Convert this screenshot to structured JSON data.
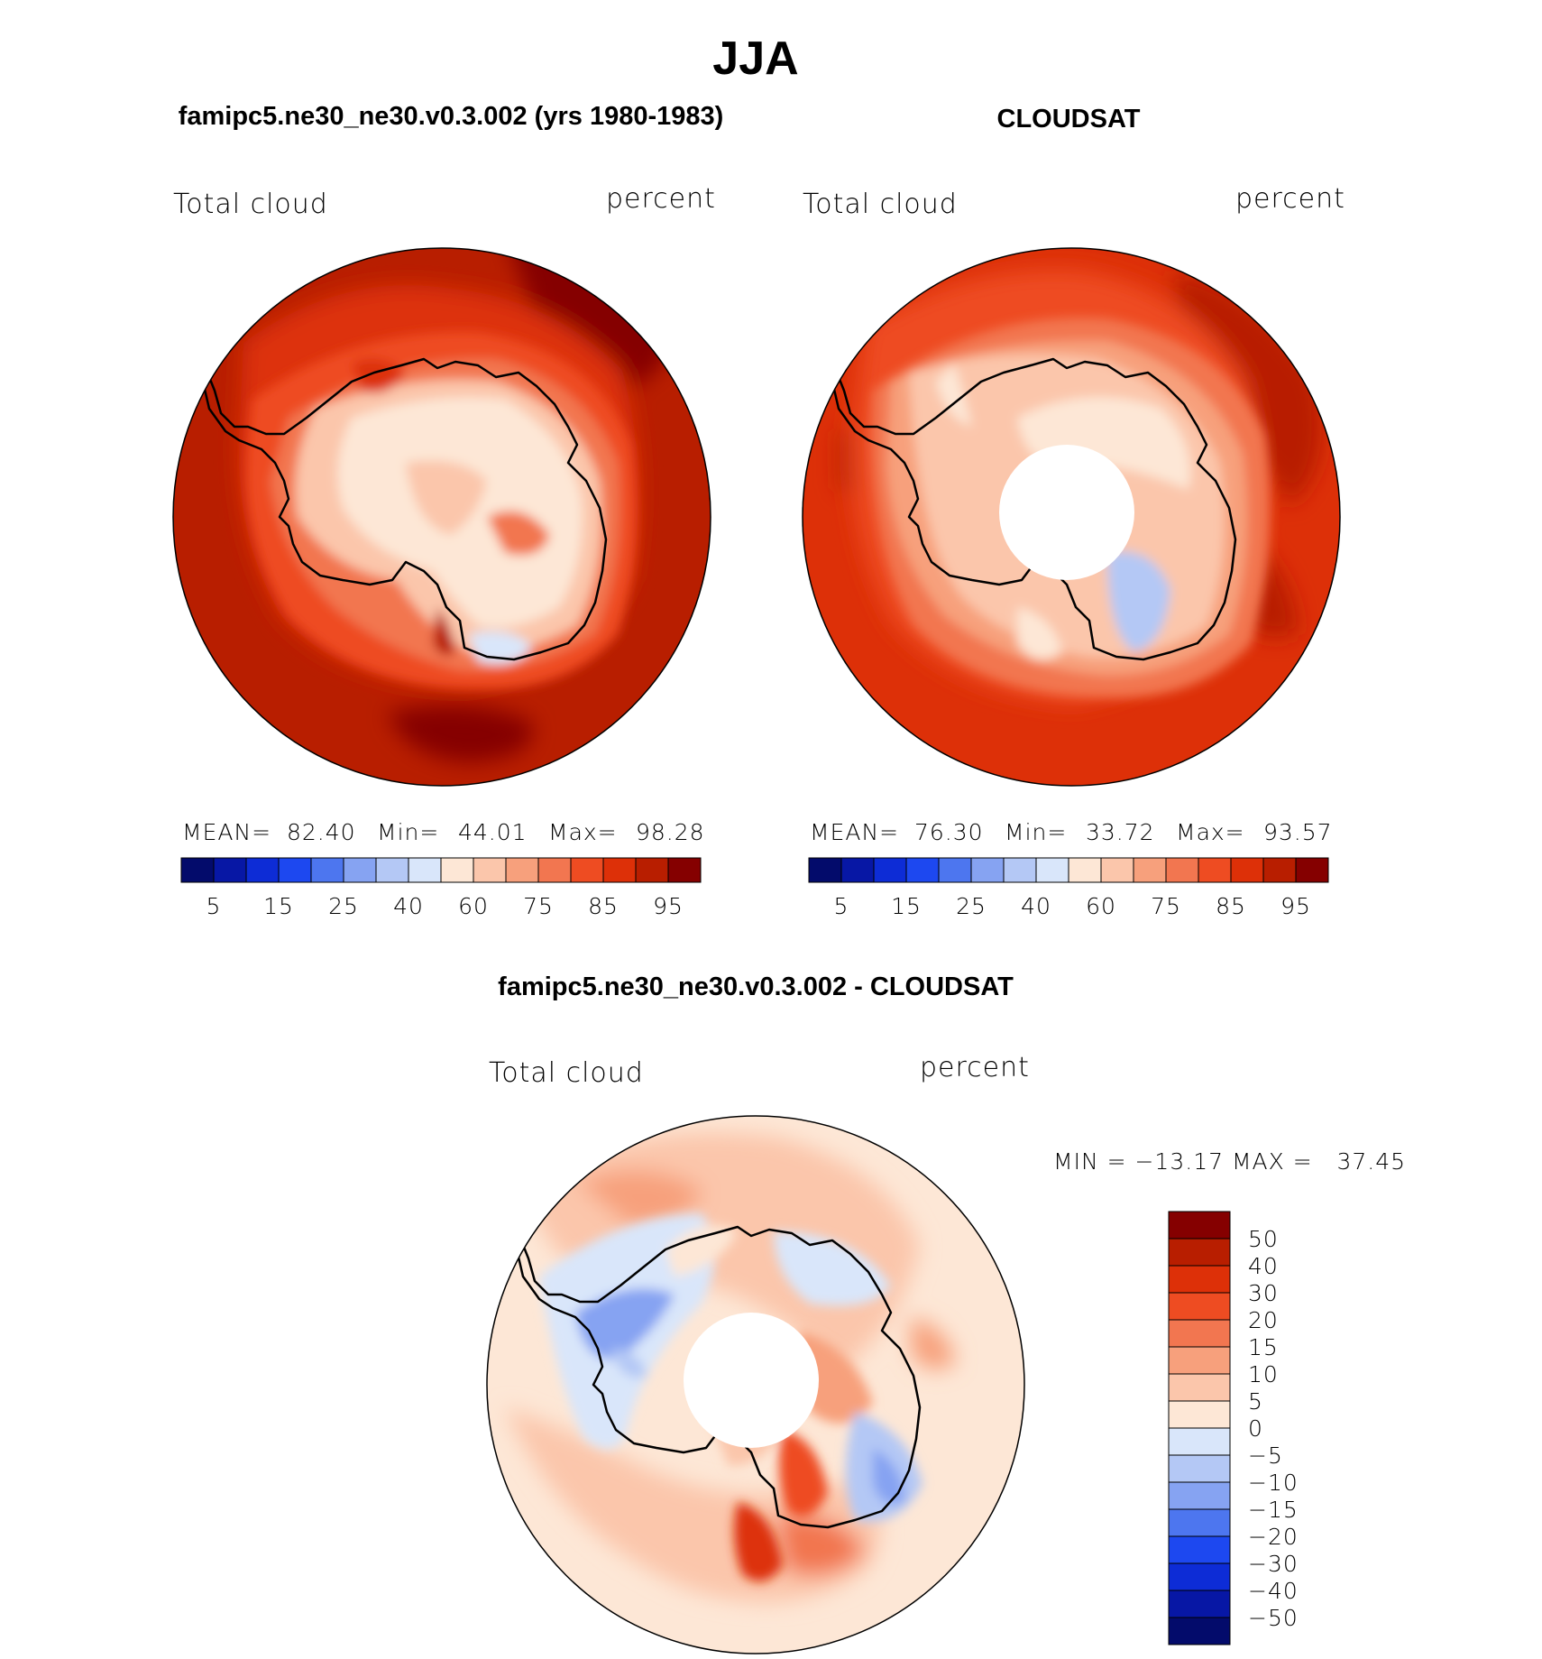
{
  "figure": {
    "season": "JJA",
    "model_title": "famipc5.ne30_ne30.v0.3.002 (yrs 1980-1983)",
    "obs_title": "CLOUDSAT",
    "diff_title": "famipc5.ne30_ne30.v0.3.002 - CLOUDSAT"
  },
  "chart_data": [
    {
      "type": "heatmap",
      "projection": "south-polar-stereographic",
      "panel": "model",
      "variable_label": "Total cloud",
      "units_label": "percent",
      "stats": {
        "mean_label": "MEAN=",
        "mean": "82.40",
        "min_label": "Min=",
        "min": "44.01",
        "max_label": "Max=",
        "max": "98.28"
      },
      "levels": [
        5,
        10,
        15,
        20,
        25,
        30,
        40,
        50,
        60,
        70,
        75,
        80,
        85,
        90,
        95
      ],
      "colors": [
        "#030b6b",
        "#0717a5",
        "#0d2cd6",
        "#1d48f0",
        "#4d76ef",
        "#86a3f2",
        "#b4c8f5",
        "#d9e6fa",
        "#fde7d6",
        "#fbc6ab",
        "#f7a07c",
        "#f27650",
        "#ee4c22",
        "#dd3008",
        "#b81e00",
        "#850000"
      ],
      "colorbar_tick_labels": [
        "5",
        "15",
        "25",
        "40",
        "60",
        "75",
        "85",
        "95"
      ],
      "description_regions": {
        "southern_ocean": "85-95",
        "antarctic_interior": "60-70",
        "coastal_ring": "75-85"
      }
    },
    {
      "type": "heatmap",
      "projection": "south-polar-stereographic",
      "panel": "observations",
      "variable_label": "Total cloud",
      "units_label": "percent",
      "stats": {
        "mean_label": "MEAN=",
        "mean": "76.30",
        "min_label": "Min=",
        "min": "33.72",
        "max_label": "Max=",
        "max": "93.57"
      },
      "levels": [
        5,
        10,
        15,
        20,
        25,
        30,
        40,
        50,
        60,
        70,
        75,
        80,
        85,
        90,
        95
      ],
      "colors": [
        "#030b6b",
        "#0717a5",
        "#0d2cd6",
        "#1d48f0",
        "#4d76ef",
        "#86a3f2",
        "#b4c8f5",
        "#d9e6fa",
        "#fde7d6",
        "#fbc6ab",
        "#f7a07c",
        "#f27650",
        "#ee4c22",
        "#dd3008",
        "#b81e00",
        "#850000"
      ],
      "colorbar_tick_labels": [
        "5",
        "15",
        "25",
        "40",
        "60",
        "75",
        "85",
        "95"
      ],
      "description_regions": {
        "southern_ocean": "80-90",
        "antarctic_interior": "60-75",
        "east_antarctic_plateau": "40-60",
        "pole_hole": "missing"
      }
    },
    {
      "type": "heatmap",
      "projection": "south-polar-stereographic",
      "panel": "difference",
      "variable_label": "Total cloud",
      "units_label": "percent",
      "stats": {
        "text": "MIN = −13.17 MAX =   37.45",
        "min": -13.17,
        "max": 37.45
      },
      "levels": [
        -50,
        -40,
        -30,
        -20,
        -15,
        -10,
        -5,
        0,
        5,
        10,
        15,
        20,
        30,
        40,
        50
      ],
      "colors": [
        "#030b6b",
        "#0717a5",
        "#0d2cd6",
        "#1d48f0",
        "#4d76ef",
        "#86a3f2",
        "#b4c8f5",
        "#d9e6fa",
        "#fde7d6",
        "#fbc6ab",
        "#f7a07c",
        "#f27650",
        "#ee4c22",
        "#dd3008",
        "#b81e00",
        "#850000"
      ],
      "colorbar_tick_labels": [
        "50",
        "40",
        "30",
        "20",
        "15",
        "10",
        "5",
        "0",
        "−5",
        "−10",
        "−15",
        "−20",
        "−30",
        "−40",
        "−50"
      ],
      "description_regions": {
        "southern_ocean": "0-15",
        "west_antarctica": "-5 to -15",
        "ross_sea_ice_shelf": "20-40",
        "pole_hole": "missing"
      }
    }
  ]
}
